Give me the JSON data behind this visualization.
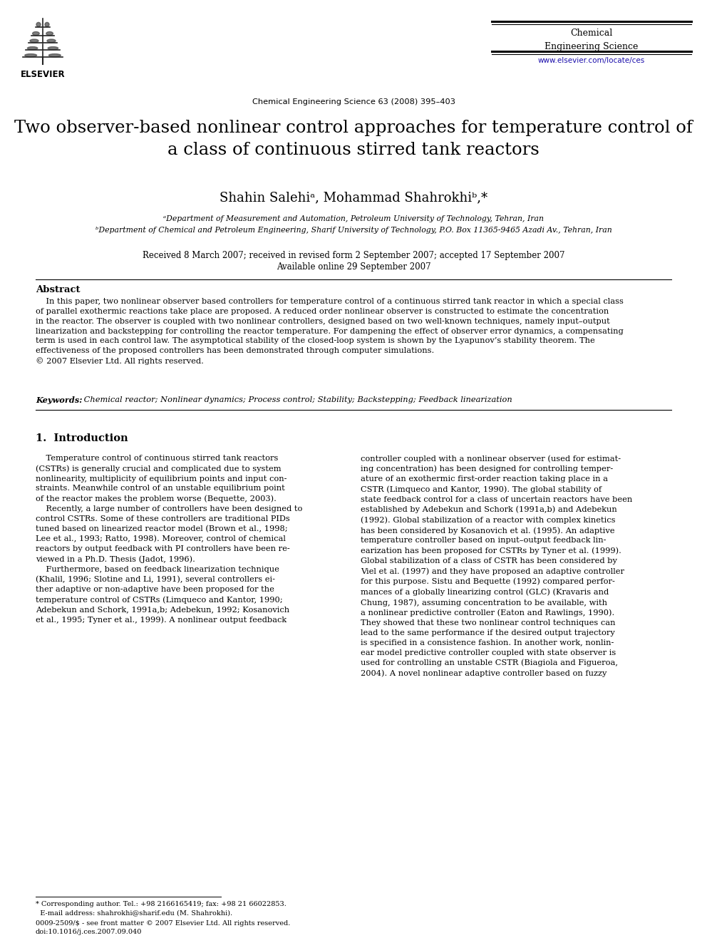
{
  "page_bg": "#ffffff",
  "figsize": [
    9.92,
    13.23
  ],
  "dpi": 100,
  "header_journal_name": "Chemical\nEngineering Science",
  "header_journal_name_color": "#000000",
  "header_journal_url": "www.elsevier.com/locate/ces",
  "header_journal_url_color": "#1a0dab",
  "header_cite": "Chemical Engineering Science 63 (2008) 395–403",
  "header_cite_color": "#000000",
  "title": "Two observer-based nonlinear control approaches for temperature control of\na class of continuous stirred tank reactors",
  "title_color": "#000000",
  "title_fontsize": 17.5,
  "authors": "Shahin Salehiᵃ, Mohammad Shahrokhiᵇ,*",
  "authors_color": "#000000",
  "authors_fontsize": 13,
  "affil_a": "ᵃDepartment of Measurement and Automation, Petroleum University of Technology, Tehran, Iran",
  "affil_b": "ᵇDepartment of Chemical and Petroleum Engineering, Sharif University of Technology, P.O. Box 11365-9465 Azadi Av., Tehran, Iran",
  "affil_color": "#000000",
  "affil_fontsize": 7.8,
  "received": "Received 8 March 2007; received in revised form 2 September 2007; accepted 17 September 2007",
  "available": "Available online 29 September 2007",
  "dates_color": "#000000",
  "dates_fontsize": 8.5,
  "abstract_title": "Abstract",
  "abstract_title_fontsize": 9.5,
  "abstract_body": "    In this paper, two nonlinear observer based controllers for temperature control of a continuous stirred tank reactor in which a special class\nof parallel exothermic reactions take place are proposed. A reduced order nonlinear observer is constructed to estimate the concentration\nin the reactor. The observer is coupled with two nonlinear controllers, designed based on two well-known techniques, namely input–output\nlinearization and backstepping for controlling the reactor temperature. For dampening the effect of observer error dynamics, a compensating\nterm is used in each control law. The asymptotical stability of the closed-loop system is shown by the Lyapunov’s stability theorem. The\neffectiveness of the proposed controllers has been demonstrated through computer simulations.\n© 2007 Elsevier Ltd. All rights reserved.",
  "abstract_body_fontsize": 8.2,
  "abstract_color": "#000000",
  "keywords_label": "Keywords:",
  "keywords_text": " Chemical reactor; Nonlinear dynamics; Process control; Stability; Backstepping; Feedback linearization",
  "keywords_fontsize": 8.2,
  "keywords_color": "#000000",
  "intro_title": "1.  Introduction",
  "intro_title_fontsize": 10.5,
  "intro_title_color": "#000000",
  "intro_col1_p1": "    Temperature control of continuous stirred tank reactors\n(CSTRs) is generally crucial and complicated due to system\nnonlinearity, multiplicity of equilibrium points and input con-\nstraints. Meanwhile control of an unstable equilibrium point\nof the reactor makes the problem worse (Bequette, 2003).\n    Recently, a large number of controllers have been designed to\ncontrol CSTRs. Some of these controllers are traditional PIDs\ntuned based on linearized reactor model (Brown et al., 1998;\nLee et al., 1993; Ratto, 1998). Moreover, control of chemical\nreactors by output feedback with PI controllers have been re-\nviewed in a Ph.D. Thesis (Jadot, 1996).\n    Furthermore, based on feedback linearization technique\n(Khalil, 1996; Slotine and Li, 1991), several controllers ei-\nther adaptive or non-adaptive have been proposed for the\ntemperature control of CSTRs (Limqueco and Kantor, 1990;\nAdebekun and Schork, 1991a,b; Adebekun, 1992; Kosanovich\net al., 1995; Tyner et al., 1999). A nonlinear output feedback",
  "intro_col2_p1": "controller coupled with a nonlinear observer (used for estimat-\ning concentration) has been designed for controlling temper-\nature of an exothermic first-order reaction taking place in a\nCSTR (Limqueco and Kantor, 1990). The global stability of\nstate feedback control for a class of uncertain reactors have been\nestablished by Adebekun and Schork (1991a,b) and Adebekun\n(1992). Global stabilization of a reactor with complex kinetics\nhas been considered by Kosanovich et al. (1995). An adaptive\ntemperature controller based on input–output feedback lin-\nearization has been proposed for CSTRs by Tyner et al. (1999).\nGlobal stabilization of a class of CSTR has been considered by\nViel et al. (1997) and they have proposed an adaptive controller\nfor this purpose. Sistu and Bequette (1992) compared perfor-\nmances of a globally linearizing control (GLC) (Kravaris and\nChung, 1987), assuming concentration to be available, with\na nonlinear predictive controller (Eaton and Rawlings, 1990).\nThey showed that these two nonlinear control techniques can\nlead to the same performance if the desired output trajectory\nis specified in a consistence fashion. In another work, nonlin-\near model predictive controller coupled with state observer is\nused for controlling an unstable CSTR (Biagiola and Figueroa,\n2004). A novel nonlinear adaptive controller based on fuzzy",
  "intro_text_fontsize": 8.2,
  "intro_text_color": "#000000",
  "footnote_star": "* Corresponding author. Tel.: +98 2166165419; fax: +98 21 66022853.\n  E-mail address: shahrokhi@sharif.edu (M. Shahrokhi).",
  "footnote_issn": "0009-2509/$ - see front matter © 2007 Elsevier Ltd. All rights reserved.\ndoi:10.1016/j.ces.2007.09.040",
  "footnote_fontsize": 7.0,
  "footnote_color": "#000000",
  "link_color": "#1a0dab"
}
